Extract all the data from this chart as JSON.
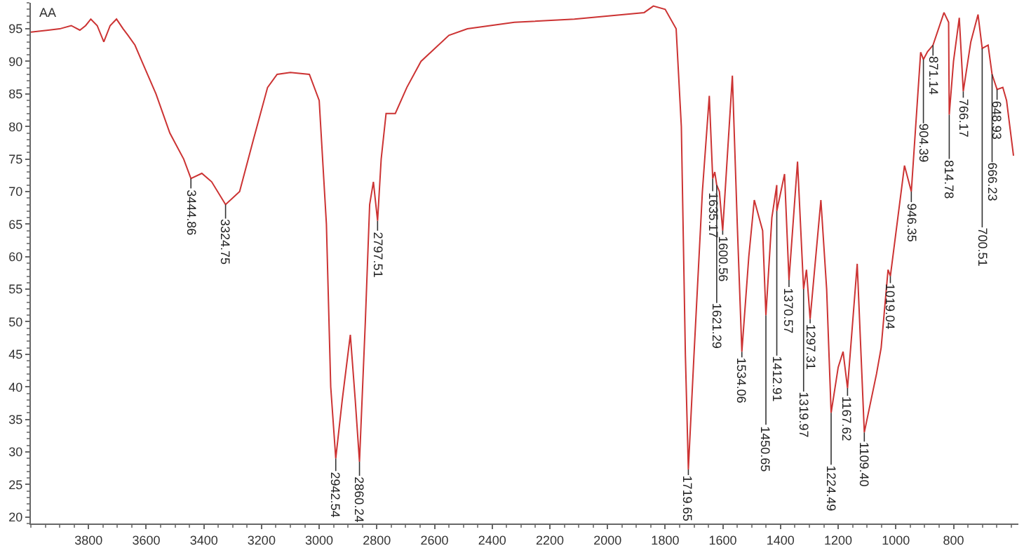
{
  "chart_data": {
    "type": "line",
    "xlim": [
      4000,
      575
    ],
    "ylim": [
      19,
      99
    ],
    "xticks": [
      3800,
      3600,
      3400,
      3200,
      3000,
      2800,
      2600,
      2400,
      2200,
      2000,
      1800,
      1600,
      1400,
      1200,
      1000,
      800
    ],
    "yticks": [
      20,
      25,
      30,
      35,
      40,
      45,
      50,
      55,
      60,
      65,
      70,
      75,
      80,
      85,
      90,
      95
    ],
    "legend": false,
    "marker": "none",
    "line_style": "solid",
    "x": [
      4000,
      3940,
      3900,
      3860,
      3830,
      3810,
      3792,
      3770,
      3747,
      3725,
      3703,
      3680,
      3663,
      3639,
      3615,
      3566,
      3518,
      3470,
      3444.86,
      3407,
      3373,
      3324.75,
      3276,
      3228,
      3179,
      3146,
      3100,
      3034,
      3000,
      2975,
      2960,
      2942.54,
      2920,
      2892,
      2875,
      2860.24,
      2840,
      2825,
      2812,
      2797.51,
      2785,
      2768,
      2736,
      2696,
      2647,
      2550,
      2486,
      2323,
      2115,
      1873,
      1841,
      1800,
      1762,
      1744,
      1730,
      1719.65,
      1700,
      1671,
      1647,
      1635.17,
      1628,
      1621.29,
      1612,
      1600.56,
      1567,
      1550,
      1534.06,
      1510,
      1491,
      1462,
      1450.65,
      1430,
      1413,
      1412.91,
      1386,
      1370.57,
      1341,
      1319.97,
      1310,
      1297.31,
      1260,
      1240,
      1224.49,
      1200,
      1183,
      1167.62,
      1134,
      1109.4,
      1067,
      1051,
      1027,
      1019.04,
      970,
      946.35,
      914,
      904.39,
      890,
      871.14,
      833,
      817,
      814.78,
      800,
      780,
      766.17,
      740,
      715,
      700.51,
      680,
      666.23,
      655,
      648.93,
      629,
      616,
      592
    ],
    "series": [
      {
        "color": "#cc3333",
        "values": [
          94.5,
          94.8,
          95,
          95.5,
          94.8,
          95.5,
          96.5,
          95.5,
          93,
          95.5,
          96.5,
          95,
          94,
          92.5,
          90,
          85,
          79,
          75,
          72,
          72.8,
          71.5,
          68,
          70,
          78,
          86,
          88,
          88.3,
          88,
          84,
          65,
          40,
          29,
          38,
          48,
          38,
          28.5,
          50,
          68,
          71.5,
          65.5,
          75,
          82,
          82,
          86,
          90,
          94,
          95,
          96,
          96.5,
          97.5,
          98.5,
          98,
          95,
          80,
          45,
          27.3,
          45,
          70,
          84.7,
          72,
          73,
          71,
          70,
          64,
          87.8,
          65,
          45.4,
          60,
          68.7,
          64,
          51,
          66,
          71,
          67,
          72.7,
          56.4,
          74.6,
          55,
          58,
          50.4,
          68.7,
          55,
          36,
          43,
          45.4,
          39.8,
          58.9,
          33,
          42,
          46,
          58,
          57,
          74,
          70,
          91.4,
          90.3,
          91.5,
          92.5,
          97.5,
          96,
          81.8,
          90,
          96.7,
          85.4,
          93,
          97.2,
          92,
          92.5,
          88,
          86.5,
          85.7,
          86,
          84,
          75.5
        ]
      }
    ],
    "annotations": [
      "AA",
      {
        "text": "3444.86",
        "x": 3444.86,
        "y": 72
      },
      {
        "text": "3324.75",
        "x": 3324.75,
        "y": 68
      },
      {
        "text": "2942.54",
        "x": 2942.54,
        "y": 29
      },
      {
        "text": "2860.24",
        "x": 2860.24,
        "y": 28.5
      },
      {
        "text": "2797.51",
        "x": 2797.51,
        "y": 65.5
      },
      {
        "text": "1719.65",
        "x": 1719.65,
        "y": 27.3
      },
      {
        "text": "1635.17",
        "x": 1635.17,
        "y": 72
      },
      {
        "text": "1621.29",
        "x": 1621.29,
        "y": 71
      },
      {
        "text": "1600.56",
        "x": 1600.56,
        "y": 64
      },
      {
        "text": "1534.06",
        "x": 1534.06,
        "y": 45.4
      },
      {
        "text": "1450.65",
        "x": 1450.65,
        "y": 51
      },
      {
        "text": "1412.91",
        "x": 1412.91,
        "y": 67
      },
      {
        "text": "1370.57",
        "x": 1370.57,
        "y": 56.4
      },
      {
        "text": "1319.97",
        "x": 1319.97,
        "y": 55
      },
      {
        "text": "1297.31",
        "x": 1297.31,
        "y": 50.4
      },
      {
        "text": "1224.49",
        "x": 1224.49,
        "y": 36
      },
      {
        "text": "1167.62",
        "x": 1167.62,
        "y": 39.8
      },
      {
        "text": "1109.40",
        "x": 1109.4,
        "y": 33
      },
      {
        "text": "1019.04",
        "x": 1019.04,
        "y": 57
      },
      {
        "text": "946.35",
        "x": 946.35,
        "y": 70
      },
      {
        "text": "904.39",
        "x": 904.39,
        "y": 90.3
      },
      {
        "text": "871.14",
        "x": 871.14,
        "y": 92.5
      },
      {
        "text": "814.78",
        "x": 814.78,
        "y": 81.8
      },
      {
        "text": "766.17",
        "x": 766.17,
        "y": 85.4
      },
      {
        "text": "700.51",
        "x": 700.51,
        "y": 92
      },
      {
        "text": "666.23",
        "x": 666.23,
        "y": 88
      },
      {
        "text": "648.93",
        "x": 648.93,
        "y": 85.7
      }
    ]
  }
}
